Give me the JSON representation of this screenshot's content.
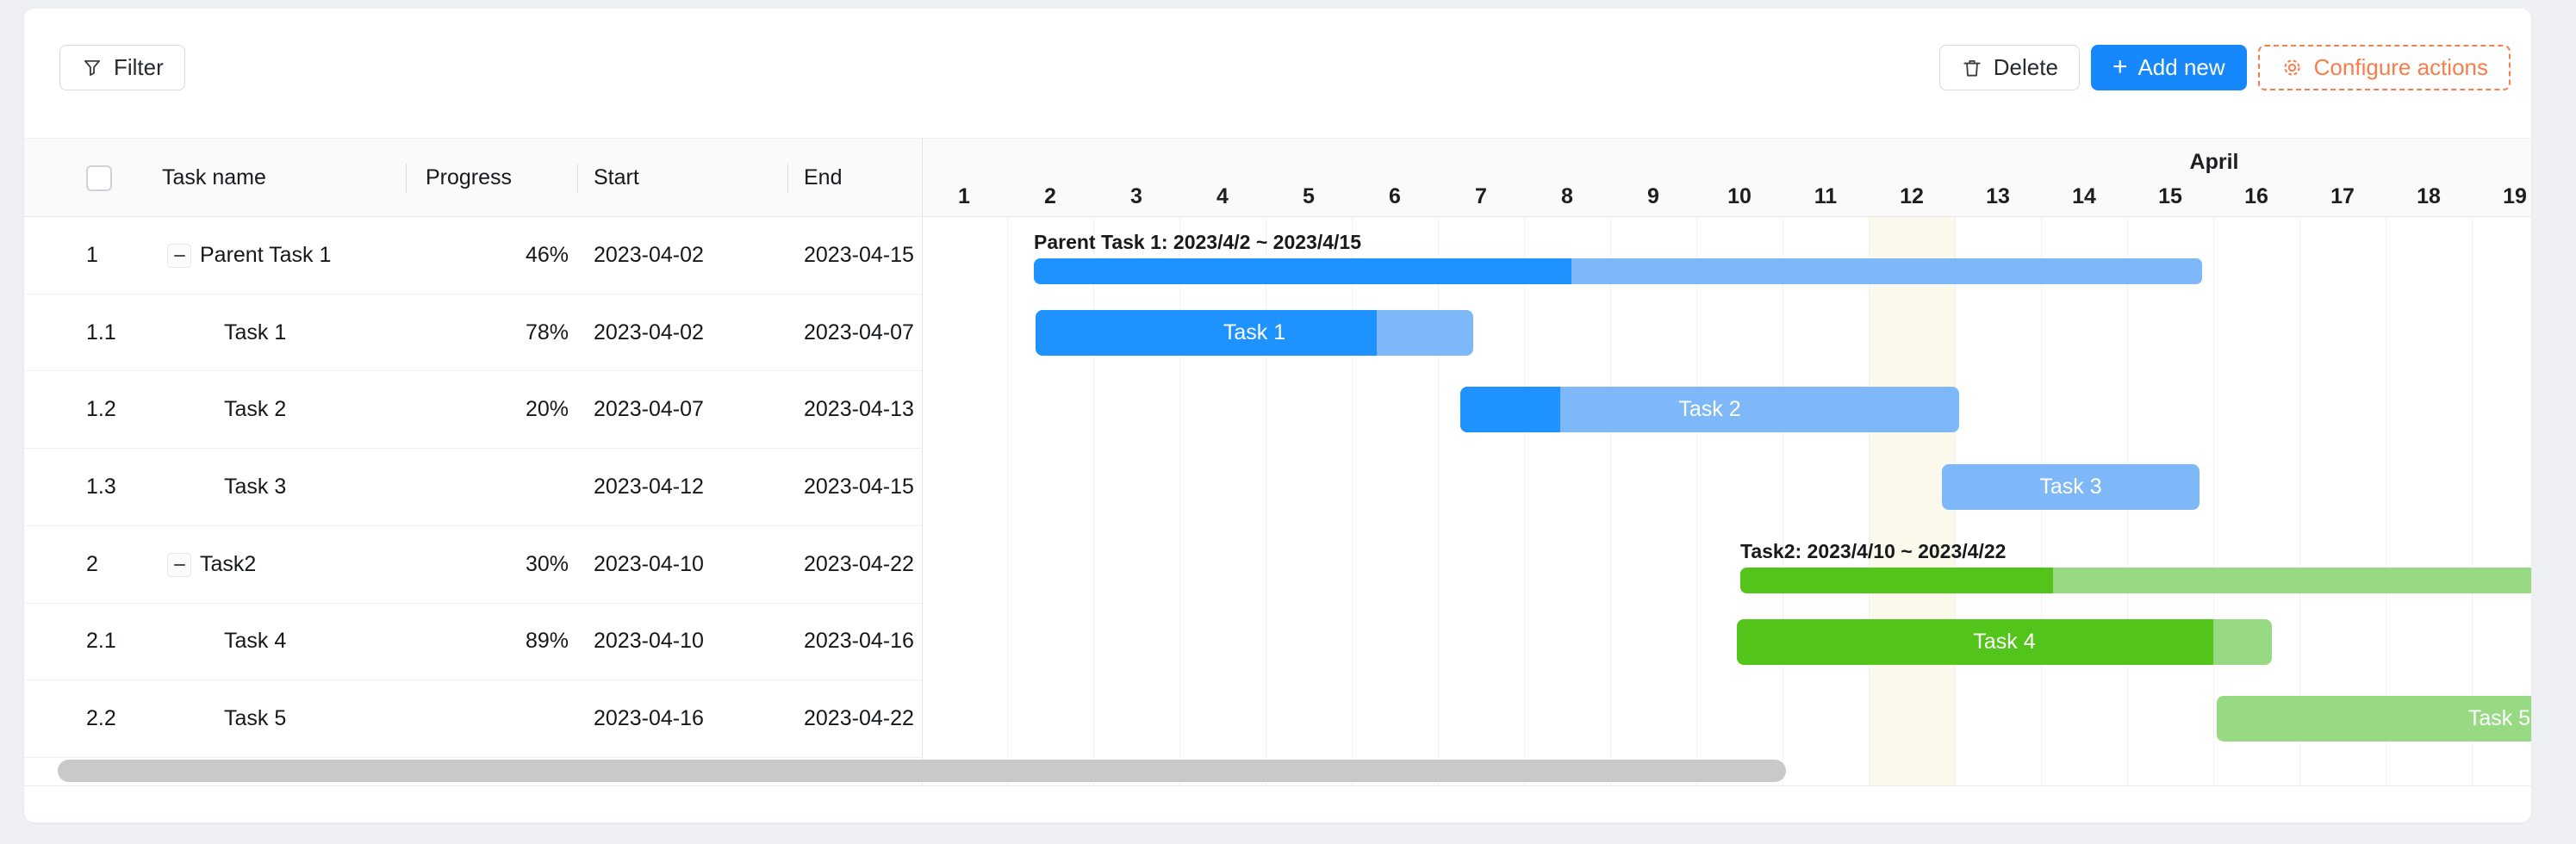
{
  "toolbar": {
    "filter_label": "Filter",
    "delete_label": "Delete",
    "add_new_label": "Add new",
    "add_new_plus": "+",
    "configure_label": "Configure actions",
    "icons": [
      "funnel-icon",
      "trash-icon",
      "plus-icon",
      "gear-icon"
    ]
  },
  "colors": {
    "accent_blue": "#1688fb",
    "accent_orange": "#fa7c4a",
    "bar_blue_dark": "#1e93ff",
    "bar_blue_light": "#7fb8f9",
    "bar_green_dark": "#52c41a",
    "bar_green_light": "#98da83",
    "highlight_column": "#faf9ec",
    "header_background": "#fafafa"
  },
  "table": {
    "header": {
      "select_all_checked": false,
      "task_name": "Task name",
      "progress": "Progress",
      "start": "Start",
      "end": "End"
    },
    "rows": [
      {
        "num": "1",
        "collapsible": true,
        "name": "Parent Task 1",
        "progress": "46%",
        "start": "2023-04-02",
        "end": "2023-04-15"
      },
      {
        "num": "1.1",
        "collapsible": false,
        "name": "Task 1",
        "progress": "78%",
        "start": "2023-04-02",
        "end": "2023-04-07"
      },
      {
        "num": "1.2",
        "collapsible": false,
        "name": "Task 2",
        "progress": "20%",
        "start": "2023-04-07",
        "end": "2023-04-13"
      },
      {
        "num": "1.3",
        "collapsible": false,
        "name": "Task 3",
        "progress": "",
        "start": "2023-04-12",
        "end": "2023-04-15"
      },
      {
        "num": "2",
        "collapsible": true,
        "name": "Task2",
        "progress": "30%",
        "start": "2023-04-10",
        "end": "2023-04-22"
      },
      {
        "num": "2.1",
        "collapsible": false,
        "name": "Task 4",
        "progress": "89%",
        "start": "2023-04-10",
        "end": "2023-04-16"
      },
      {
        "num": "2.2",
        "collapsible": false,
        "name": "Task 5",
        "progress": "",
        "start": "2023-04-16",
        "end": "2023-04-22"
      }
    ]
  },
  "chart_data": {
    "type": "gantt",
    "month_label": "April",
    "visible_days": [
      1,
      2,
      3,
      4,
      5,
      6,
      7,
      8,
      9,
      10,
      11,
      12,
      13,
      14,
      15,
      16,
      17,
      18,
      19
    ],
    "highlight_day": 12,
    "tasks": [
      {
        "row": 0,
        "kind": "parent",
        "name": "Parent Task 1",
        "range_label": "Parent Task 1: 2023/4/2 ~ 2023/4/15",
        "bar_label": "",
        "start": "2023-04-02",
        "end": "2023-04-15",
        "progress_pct": 46,
        "scheme": "blue",
        "start_day": 2.31,
        "end_day": 15.87
      },
      {
        "row": 1,
        "kind": "task",
        "name": "Task 1",
        "range_label": "",
        "bar_label": "Task 1",
        "start": "2023-04-02",
        "end": "2023-04-07",
        "progress_pct": 78,
        "scheme": "blue",
        "start_day": 2.33,
        "end_day": 7.41
      },
      {
        "row": 2,
        "kind": "task",
        "name": "Task 2",
        "range_label": "",
        "bar_label": "Task 2",
        "start": "2023-04-07",
        "end": "2023-04-13",
        "progress_pct": 20,
        "scheme": "blue",
        "start_day": 7.26,
        "end_day": 13.05
      },
      {
        "row": 3,
        "kind": "task",
        "name": "Task 3",
        "range_label": "",
        "bar_label": "Task 3",
        "start": "2023-04-12",
        "end": "2023-04-15",
        "progress_pct": 0,
        "scheme": "blue",
        "start_day": 12.85,
        "end_day": 15.84
      },
      {
        "row": 4,
        "kind": "parent",
        "name": "Task2",
        "range_label": "Task2: 2023/4/10 ~ 2023/4/22",
        "bar_label": "",
        "start": "2023-04-10",
        "end": "2023-04-22",
        "progress_pct": 30,
        "scheme": "green",
        "start_day": 10.51,
        "end_day": 22.6
      },
      {
        "row": 5,
        "kind": "task",
        "name": "Task 4",
        "range_label": "",
        "bar_label": "Task 4",
        "start": "2023-04-10",
        "end": "2023-04-16",
        "progress_pct": 89,
        "scheme": "green",
        "start_day": 10.47,
        "end_day": 16.68
      },
      {
        "row": 6,
        "kind": "task",
        "name": "Task 5",
        "range_label": "",
        "bar_label": "Task 5",
        "start": "2023-04-16",
        "end": "2023-04-22",
        "progress_pct": 0,
        "scheme": "green",
        "start_day": 16.04,
        "end_day": 22.6
      }
    ]
  }
}
